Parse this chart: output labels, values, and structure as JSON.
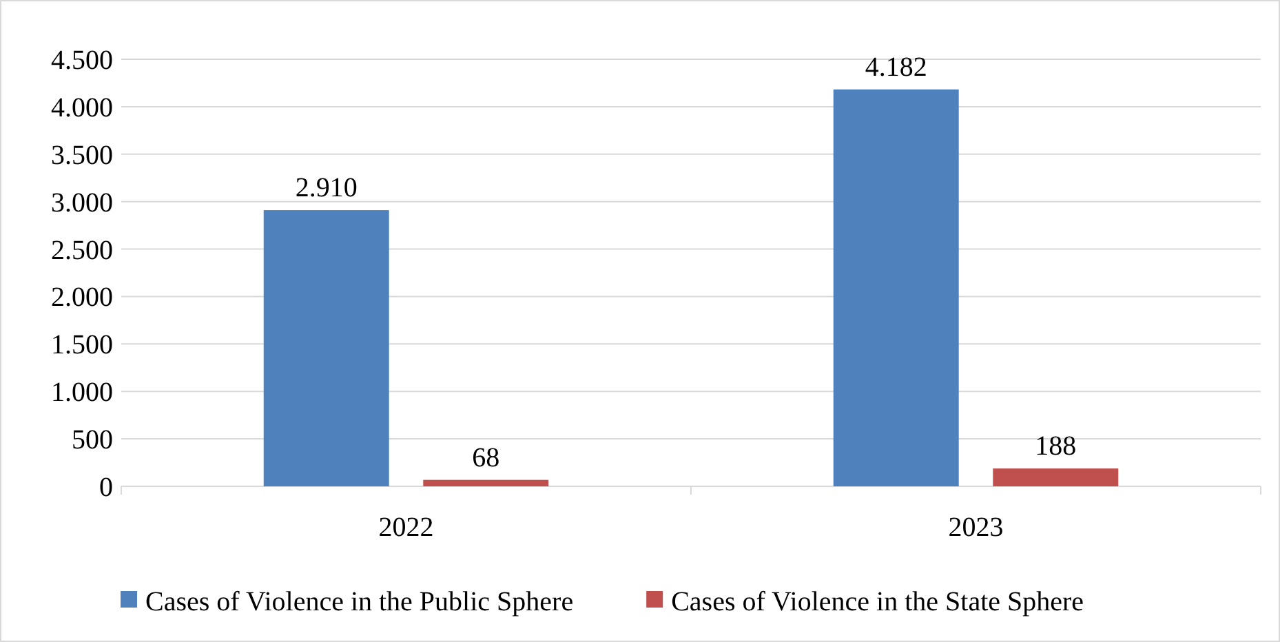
{
  "chart_data": {
    "type": "bar",
    "categories": [
      "2022",
      "2023"
    ],
    "series": [
      {
        "name": "Cases of Violence in the Public Sphere",
        "color": "#4f81bd",
        "values": [
          2910,
          4182
        ],
        "value_labels": [
          "2.910",
          "4.182"
        ]
      },
      {
        "name": "Cases of Violence in the State Sphere",
        "color": "#c0504d",
        "values": [
          68,
          188
        ],
        "value_labels": [
          "68",
          "188"
        ]
      }
    ],
    "ylim": [
      0,
      4500
    ],
    "yticks": [
      {
        "value": 0,
        "label": "0"
      },
      {
        "value": 500,
        "label": "500"
      },
      {
        "value": 1000,
        "label": "1.000"
      },
      {
        "value": 1500,
        "label": "1.500"
      },
      {
        "value": 2000,
        "label": "2.000"
      },
      {
        "value": 2500,
        "label": "2.500"
      },
      {
        "value": 3000,
        "label": "3.000"
      },
      {
        "value": 3500,
        "label": "3.500"
      },
      {
        "value": 4000,
        "label": "4.000"
      },
      {
        "value": 4500,
        "label": "4.500"
      }
    ],
    "grid": "y",
    "legend": "bottom"
  }
}
